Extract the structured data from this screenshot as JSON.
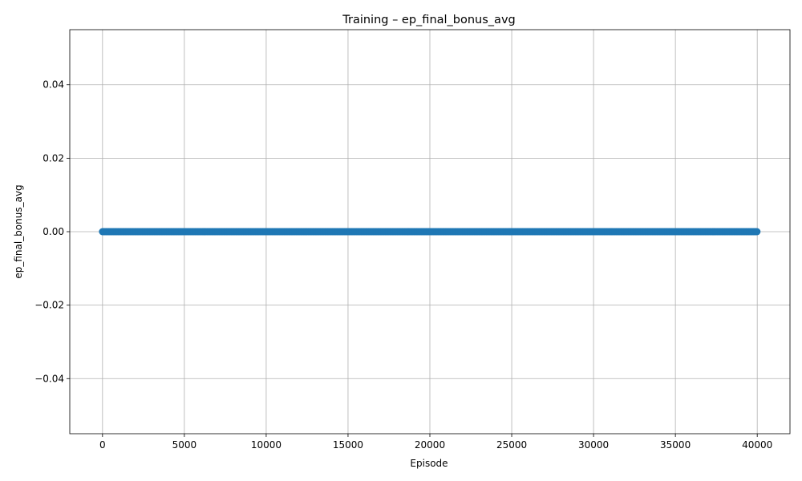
{
  "chart_data": {
    "type": "scatter",
    "title": "Training – ep_final_bonus_avg",
    "xlabel": "Episode",
    "ylabel": "ep_final_bonus_avg",
    "xlim": [
      -2000,
      42000
    ],
    "ylim": [
      -0.055,
      0.055
    ],
    "xticks": [
      0,
      5000,
      10000,
      15000,
      20000,
      25000,
      30000,
      35000,
      40000
    ],
    "xtick_labels": [
      "0",
      "5000",
      "10000",
      "15000",
      "20000",
      "25000",
      "30000",
      "35000",
      "40000"
    ],
    "yticks": [
      -0.04,
      -0.02,
      0.0,
      0.02,
      0.04
    ],
    "ytick_labels": [
      "−0.04",
      "−0.02",
      "0.00",
      "0.02",
      "0.04"
    ],
    "grid": true,
    "series": [
      {
        "x_start": 0,
        "x_end": 40000,
        "y": 0.0,
        "color": "#1f77b4",
        "marker": "circle"
      }
    ]
  }
}
